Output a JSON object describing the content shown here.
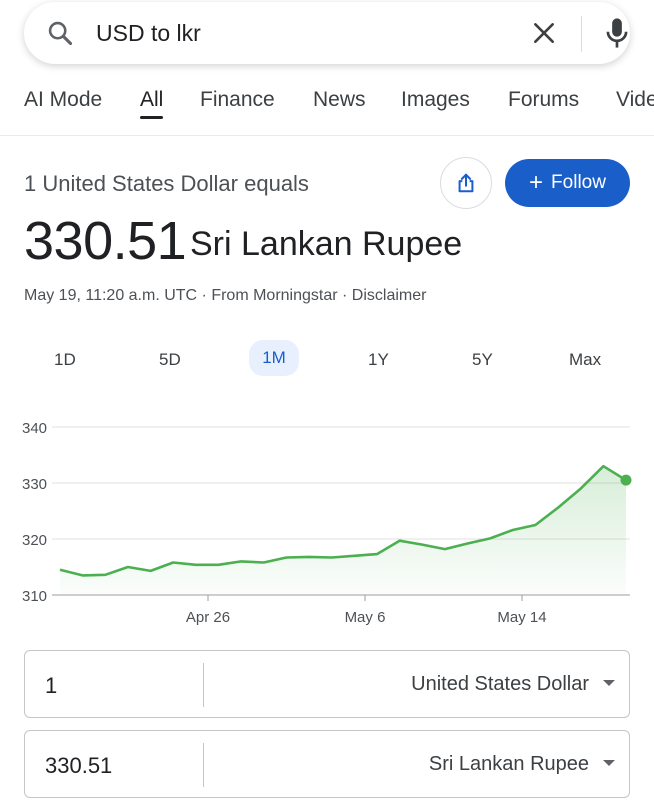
{
  "search": {
    "query": "USD to lkr"
  },
  "tabs": [
    {
      "label": "AI Mode"
    },
    {
      "label": "All"
    },
    {
      "label": "Finance"
    },
    {
      "label": "News"
    },
    {
      "label": "Images"
    },
    {
      "label": "Forums"
    },
    {
      "label": "Vide"
    }
  ],
  "result": {
    "equals_label": "1 United States Dollar equals",
    "follow_label": "Follow",
    "rate_value": "330.51",
    "rate_currency": "Sri Lankan Rupee",
    "source_line": "May 19, 11:20 a.m. UTC · From Morningstar · Disclaimer"
  },
  "ranges": [
    {
      "label": "1D"
    },
    {
      "label": "5D"
    },
    {
      "label": "1M"
    },
    {
      "label": "1Y"
    },
    {
      "label": "5Y"
    },
    {
      "label": "Max"
    }
  ],
  "colors": {
    "accent": "#1a5ec9",
    "line": "#4caf50"
  },
  "chart_data": {
    "type": "area",
    "y_ticks": [
      "340",
      "330",
      "320",
      "310"
    ],
    "x_ticks": [
      "Apr 26",
      "May 6",
      "May 14"
    ],
    "ylim": [
      310,
      340
    ],
    "xlim": [
      0,
      30
    ],
    "x_tick_positions": [
      8.5,
      16.6,
      23.4
    ],
    "values": [
      314.5,
      313.5,
      313.6,
      315.0,
      314.3,
      315.8,
      315.4,
      315.4,
      316.0,
      315.8,
      316.7,
      316.8,
      316.7,
      317.0,
      317.3,
      319.7,
      319.0,
      318.2,
      319.2,
      320.1,
      321.6,
      322.5,
      325.6,
      329.0,
      333.0,
      330.51
    ],
    "x": [
      0,
      1,
      2,
      3,
      4,
      5,
      6,
      7,
      8,
      9,
      10,
      11,
      12,
      13,
      14,
      15,
      16,
      17,
      18,
      19,
      20,
      21,
      22,
      23,
      24,
      25
    ],
    "grid": true
  },
  "converter": [
    {
      "amount": "1",
      "currency": "United States Dollar"
    },
    {
      "amount": "330.51",
      "currency": "Sri Lankan Rupee"
    }
  ]
}
